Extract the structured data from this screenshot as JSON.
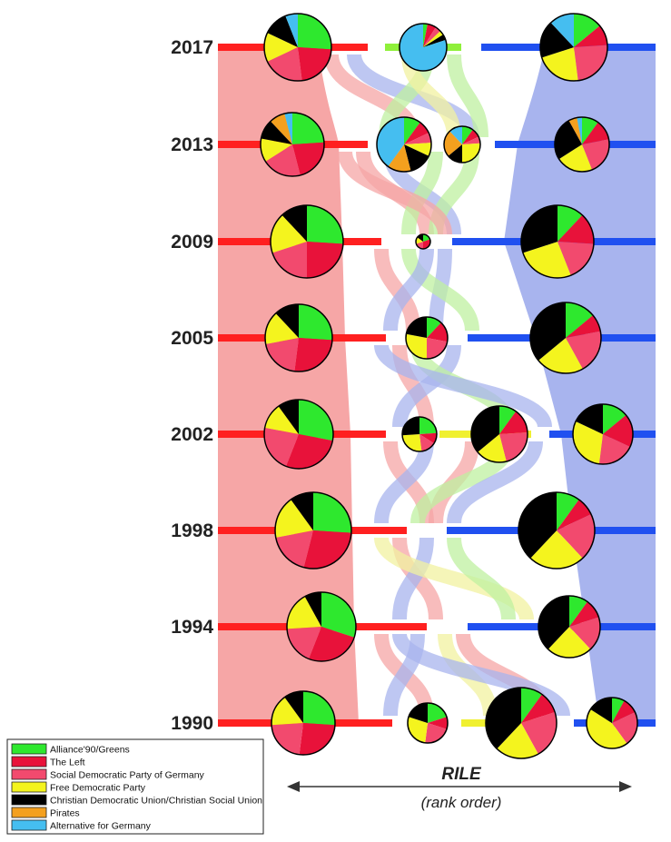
{
  "legend": [
    {
      "label": "Alliance'90/Greens",
      "color": "#2ee82e"
    },
    {
      "label": "The Left",
      "color": "#e8123a"
    },
    {
      "label": "Social Democratic Party of Germany",
      "color": "#f24a6e"
    },
    {
      "label": "Free Democratic Party",
      "color": "#f4f41e"
    },
    {
      "label": "Christian Democratic Union/Christian Social Union",
      "color": "#000000"
    },
    {
      "label": "Pirates",
      "color": "#f4a01e"
    },
    {
      "label": "Alternative for Germany",
      "color": "#45bef0"
    }
  ],
  "axis": {
    "title": "RILE",
    "subtitle": "(rank order)"
  },
  "lane_colors": {
    "left": "#ff2020",
    "green": "#8ff03a",
    "yellow": "#f0f030",
    "right": "#2050f0"
  },
  "band_colors": {
    "left": "#f6a6a6",
    "right": "#a8b4ee",
    "green": "#bff0a0",
    "yellow": "#f2f2a0"
  },
  "rows": [
    {
      "year": "2017",
      "segments": [
        {
          "color": "left",
          "x1": 240,
          "x2": 405
        },
        {
          "color": "green",
          "x1": 424,
          "x2": 508
        },
        {
          "color": "right",
          "x1": 530,
          "x2": 722
        }
      ],
      "clusters": [
        {
          "x": 328,
          "r": 37,
          "slices": [
            [
              0,
              26
            ],
            [
              1,
              22
            ],
            [
              2,
              20
            ],
            [
              3,
              14
            ],
            [
              4,
              12
            ],
            [
              6,
              6
            ]
          ]
        },
        {
          "x": 466,
          "r": 26,
          "slices": [
            [
              0,
              3
            ],
            [
              1,
              6
            ],
            [
              2,
              4
            ],
            [
              3,
              3
            ],
            [
              4,
              4
            ],
            [
              6,
              80
            ]
          ]
        },
        {
          "x": 632,
          "r": 37,
          "slices": [
            [
              0,
              14
            ],
            [
              1,
              10
            ],
            [
              2,
              24
            ],
            [
              3,
              22
            ],
            [
              4,
              18
            ],
            [
              6,
              12
            ]
          ]
        }
      ]
    },
    {
      "year": "2013",
      "segments": [
        {
          "color": "left",
          "x1": 240,
          "x2": 405
        },
        {
          "color": "right",
          "x1": 545,
          "x2": 722
        }
      ],
      "clusters": [
        {
          "x": 322,
          "r": 35,
          "slices": [
            [
              0,
              24
            ],
            [
              1,
              22
            ],
            [
              2,
              20
            ],
            [
              3,
              12
            ],
            [
              4,
              10
            ],
            [
              5,
              8
            ],
            [
              6,
              4
            ]
          ]
        },
        {
          "x": 445,
          "r": 30,
          "slices": [
            [
              0,
              10
            ],
            [
              1,
              8
            ],
            [
              2,
              6
            ],
            [
              3,
              8
            ],
            [
              4,
              14
            ],
            [
              5,
              14
            ],
            [
              6,
              40
            ]
          ]
        },
        {
          "x": 509,
          "r": 20,
          "slices": [
            [
              0,
              10
            ],
            [
              1,
              8
            ],
            [
              2,
              6
            ],
            [
              3,
              26
            ],
            [
              4,
              14
            ],
            [
              5,
              24
            ],
            [
              6,
              12
            ]
          ]
        },
        {
          "x": 641,
          "r": 30,
          "slices": [
            [
              0,
              10
            ],
            [
              1,
              12
            ],
            [
              2,
              22
            ],
            [
              3,
              22
            ],
            [
              4,
              26
            ],
            [
              5,
              5
            ],
            [
              6,
              3
            ]
          ]
        }
      ]
    },
    {
      "year": "2009",
      "segments": [
        {
          "color": "left",
          "x1": 240,
          "x2": 420
        },
        {
          "color": "right",
          "x1": 498,
          "x2": 722
        }
      ],
      "clusters": [
        {
          "x": 338,
          "r": 40,
          "slices": [
            [
              0,
              26
            ],
            [
              1,
              24
            ],
            [
              2,
              20
            ],
            [
              3,
              18
            ],
            [
              4,
              12
            ]
          ]
        },
        {
          "x": 466,
          "r": 8,
          "slices": [
            [
              0,
              20
            ],
            [
              1,
              30
            ],
            [
              2,
              20
            ],
            [
              3,
              15
            ],
            [
              4,
              15
            ]
          ]
        },
        {
          "x": 614,
          "r": 40,
          "slices": [
            [
              0,
              12
            ],
            [
              1,
              14
            ],
            [
              2,
              18
            ],
            [
              3,
              26
            ],
            [
              4,
              30
            ]
          ]
        }
      ]
    },
    {
      "year": "2005",
      "segments": [
        {
          "color": "left",
          "x1": 240,
          "x2": 425
        },
        {
          "color": "right",
          "x1": 515,
          "x2": 722
        }
      ],
      "clusters": [
        {
          "x": 329,
          "r": 37,
          "slices": [
            [
              0,
              26
            ],
            [
              1,
              26
            ],
            [
              2,
              20
            ],
            [
              3,
              16
            ],
            [
              4,
              12
            ]
          ]
        },
        {
          "x": 470,
          "r": 23,
          "slices": [
            [
              0,
              12
            ],
            [
              1,
              16
            ],
            [
              2,
              22
            ],
            [
              3,
              28
            ],
            [
              4,
              22
            ]
          ]
        },
        {
          "x": 623,
          "r": 39,
          "slices": [
            [
              0,
              14
            ],
            [
              1,
              8
            ],
            [
              2,
              20
            ],
            [
              3,
              22
            ],
            [
              4,
              36
            ]
          ]
        }
      ]
    },
    {
      "year": "2002",
      "segments": [
        {
          "color": "left",
          "x1": 240,
          "x2": 425
        },
        {
          "color": "yellow",
          "x1": 484,
          "x2": 585
        },
        {
          "color": "right",
          "x1": 605,
          "x2": 722
        }
      ],
      "clusters": [
        {
          "x": 329,
          "r": 38,
          "slices": [
            [
              0,
              28
            ],
            [
              1,
              28
            ],
            [
              2,
              22
            ],
            [
              3,
              12
            ],
            [
              4,
              10
            ]
          ]
        },
        {
          "x": 462,
          "r": 19,
          "slices": [
            [
              0,
              24
            ],
            [
              1,
              10
            ],
            [
              2,
              14
            ],
            [
              3,
              26
            ],
            [
              4,
              26
            ]
          ]
        },
        {
          "x": 550,
          "r": 31,
          "slices": [
            [
              0,
              10
            ],
            [
              1,
              14
            ],
            [
              2,
              22
            ],
            [
              3,
              18
            ],
            [
              4,
              36
            ]
          ]
        },
        {
          "x": 664,
          "r": 33,
          "slices": [
            [
              0,
              14
            ],
            [
              1,
              18
            ],
            [
              2,
              20
            ],
            [
              3,
              30
            ],
            [
              4,
              18
            ]
          ]
        }
      ]
    },
    {
      "year": "1998",
      "segments": [
        {
          "color": "left",
          "x1": 240,
          "x2": 448
        },
        {
          "color": "right",
          "x1": 492,
          "x2": 722
        }
      ],
      "clusters": [
        {
          "x": 345,
          "r": 42,
          "slices": [
            [
              0,
              26
            ],
            [
              1,
              28
            ],
            [
              2,
              18
            ],
            [
              3,
              18
            ],
            [
              4,
              10
            ]
          ]
        },
        {
          "x": 613,
          "r": 42,
          "slices": [
            [
              0,
              10
            ],
            [
              1,
              8
            ],
            [
              2,
              20
            ],
            [
              3,
              24
            ],
            [
              4,
              38
            ]
          ]
        }
      ]
    },
    {
      "year": "1994",
      "segments": [
        {
          "color": "left",
          "x1": 240,
          "x2": 470
        },
        {
          "color": "right",
          "x1": 515,
          "x2": 722
        }
      ],
      "clusters": [
        {
          "x": 354,
          "r": 38,
          "slices": [
            [
              0,
              30
            ],
            [
              1,
              26
            ],
            [
              2,
              18
            ],
            [
              3,
              18
            ],
            [
              4,
              8
            ]
          ]
        },
        {
          "x": 627,
          "r": 34,
          "slices": [
            [
              0,
              10
            ],
            [
              1,
              10
            ],
            [
              2,
              18
            ],
            [
              3,
              24
            ],
            [
              4,
              38
            ]
          ]
        }
      ]
    },
    {
      "year": "1990",
      "segments": [
        {
          "color": "left",
          "x1": 240,
          "x2": 432
        },
        {
          "color": "yellow",
          "x1": 508,
          "x2": 612
        },
        {
          "color": "right",
          "x1": 632,
          "x2": 722
        }
      ],
      "clusters": [
        {
          "x": 334,
          "r": 35,
          "slices": [
            [
              0,
              26
            ],
            [
              1,
              26
            ],
            [
              2,
              22
            ],
            [
              3,
              16
            ],
            [
              4,
              10
            ]
          ]
        },
        {
          "x": 471,
          "r": 22,
          "slices": [
            [
              0,
              20
            ],
            [
              1,
              10
            ],
            [
              2,
              22
            ],
            [
              3,
              28
            ],
            [
              4,
              20
            ]
          ]
        },
        {
          "x": 574,
          "r": 39,
          "slices": [
            [
              0,
              10
            ],
            [
              1,
              10
            ],
            [
              2,
              22
            ],
            [
              3,
              20
            ],
            [
              4,
              38
            ]
          ]
        },
        {
          "x": 674,
          "r": 28,
          "slices": [
            [
              0,
              8
            ],
            [
              1,
              10
            ],
            [
              2,
              22
            ],
            [
              3,
              44
            ],
            [
              4,
              16
            ]
          ]
        }
      ]
    }
  ]
}
